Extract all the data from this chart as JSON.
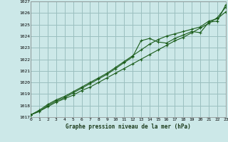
{
  "title": "Graphe pression niveau de la mer (hPa)",
  "background_color": "#cce8e8",
  "grid_color": "#9bbfbf",
  "line_color": "#1a5c1a",
  "ylim": [
    1017,
    1027
  ],
  "xlim": [
    0,
    23
  ],
  "yticks": [
    1017,
    1018,
    1019,
    1020,
    1021,
    1022,
    1023,
    1024,
    1025,
    1026,
    1027
  ],
  "xticks": [
    0,
    1,
    2,
    3,
    4,
    5,
    6,
    7,
    8,
    9,
    10,
    11,
    12,
    13,
    14,
    15,
    16,
    17,
    18,
    19,
    20,
    21,
    22,
    23
  ],
  "series1": [
    1017.2,
    1017.5,
    1017.9,
    1018.3,
    1018.6,
    1018.9,
    1019.3,
    1019.6,
    1020.0,
    1020.4,
    1020.8,
    1021.2,
    1021.6,
    1022.0,
    1022.4,
    1022.8,
    1023.2,
    1023.6,
    1023.9,
    1024.3,
    1024.7,
    1025.1,
    1025.6,
    1026.5
  ],
  "series2": [
    1017.2,
    1017.5,
    1018.0,
    1018.4,
    1018.7,
    1019.1,
    1019.5,
    1019.9,
    1020.3,
    1020.7,
    1021.2,
    1021.7,
    1022.2,
    1023.6,
    1023.8,
    1023.5,
    1023.4,
    1023.8,
    1024.1,
    1024.4,
    1024.3,
    1025.2,
    1025.3,
    1026.7
  ],
  "series3": [
    1017.2,
    1017.6,
    1018.1,
    1018.5,
    1018.8,
    1019.2,
    1019.6,
    1020.0,
    1020.4,
    1020.8,
    1021.3,
    1021.8,
    1022.3,
    1022.8,
    1023.3,
    1023.7,
    1024.0,
    1024.2,
    1024.4,
    1024.6,
    1024.8,
    1025.3,
    1025.5,
    1026.1
  ]
}
